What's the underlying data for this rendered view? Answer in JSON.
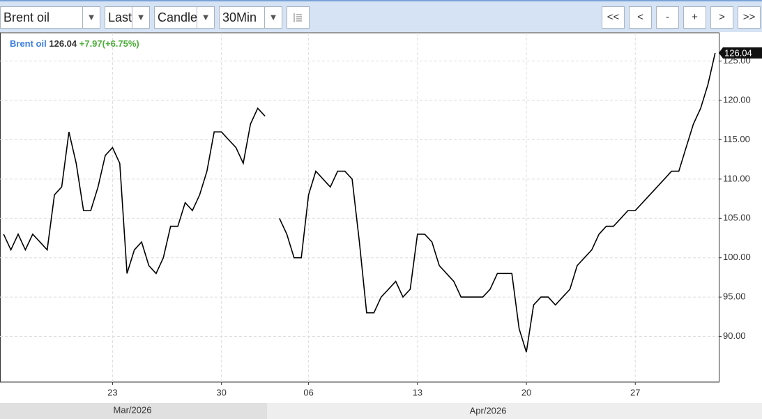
{
  "toolbar": {
    "symbol": "Brent oil",
    "price_field": "Last",
    "chart_style": "Candle",
    "interval": "30Min",
    "nav": [
      "<<",
      "<",
      "-",
      "+",
      ">",
      ">>"
    ]
  },
  "chart_data": {
    "type": "line",
    "series": [
      {
        "name": "Brent oil",
        "color": "#000000",
        "values": [
          103,
          101,
          103,
          101,
          103,
          102,
          101,
          108,
          109,
          116,
          112,
          106,
          106,
          109,
          113,
          114,
          112,
          98,
          101,
          102,
          99,
          98,
          100,
          104,
          104,
          107,
          106,
          108,
          111,
          116,
          116,
          115,
          114,
          112,
          117,
          119,
          118,
          null,
          105,
          103,
          100,
          100,
          108,
          111,
          110,
          109,
          111,
          111,
          110,
          102,
          93,
          93,
          95,
          96,
          97,
          95,
          96,
          103,
          103,
          102,
          99,
          98,
          97,
          95,
          95,
          95,
          95,
          96,
          98,
          98,
          98,
          91,
          88,
          94,
          95,
          95,
          94,
          95,
          96,
          99,
          100,
          101,
          103,
          104,
          104,
          105,
          106,
          106,
          107,
          108,
          109,
          110,
          111,
          111,
          114,
          117,
          119,
          122,
          126.04
        ]
      }
    ],
    "categories": [
      null,
      null,
      null,
      null,
      null,
      null,
      null,
      null,
      null,
      null,
      null,
      null,
      null,
      null,
      null,
      "23",
      null,
      null,
      null,
      null,
      null,
      null,
      null,
      null,
      null,
      null,
      null,
      null,
      null,
      null,
      "30",
      null,
      null,
      null,
      null,
      null,
      null,
      null,
      null,
      null,
      null,
      null,
      "06",
      null,
      null,
      null,
      null,
      null,
      null,
      null,
      null,
      null,
      null,
      null,
      null,
      null,
      null,
      "13",
      null,
      null,
      null,
      null,
      null,
      null,
      null,
      null,
      null,
      null,
      null,
      null,
      null,
      null,
      "20",
      null,
      null,
      null,
      null,
      null,
      null,
      null,
      null,
      null,
      null,
      null,
      null,
      null,
      null,
      "27",
      null,
      null,
      null,
      null,
      null,
      null,
      null,
      null,
      null,
      null,
      null
    ],
    "last": "126.04",
    "change": "+7.97(+6.75%)",
    "name_color": "#3d7fe0",
    "change_color": "#4caf3a",
    "ylim": [
      84.2,
      128.6
    ],
    "yticks": [
      {
        "value": 90,
        "label": "90.00"
      },
      {
        "value": 95,
        "label": "95.00"
      },
      {
        "value": 100,
        "label": "100.00"
      },
      {
        "value": 105,
        "label": "105.00"
      },
      {
        "value": 110,
        "label": "110.00"
      },
      {
        "value": 115,
        "label": "115.00"
      },
      {
        "value": 120,
        "label": "120.00"
      },
      {
        "value": 125,
        "label": "125.00"
      }
    ],
    "grid": true,
    "months": [
      "Mar/2026",
      "Apr/2026"
    ]
  }
}
